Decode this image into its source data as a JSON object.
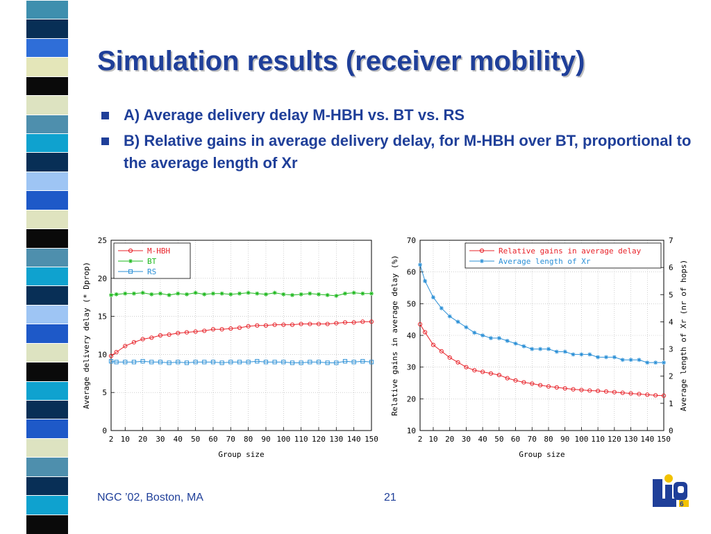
{
  "slide": {
    "title": "Simulation results (receiver mobility)",
    "bullets": [
      "A) Average delivery delay M-HBH vs. BT vs. RS",
      "B) Relative gains in average delivery delay, for M-HBH over BT, proportional to the average length of Xr"
    ],
    "footer_left": "NGC ’02, Boston, MA",
    "page_number": "21",
    "logo_icon": "lip6-logo-icon"
  },
  "colors": {
    "title": "#1f3f99",
    "red_series": "#e8232a",
    "green_series": "#1eb81e",
    "blue_series": "#2a8fd6"
  },
  "stripe_colors": [
    "#3e8fae",
    "#082f56",
    "#2f6ed8",
    "#e4e6b9",
    "#0a0a0a",
    "#dde3c1",
    "#4e8fad",
    "#0fa2cf",
    "#082f56",
    "#9ec5f4",
    "#1e59c8",
    "#dfe3bf",
    "#0a0a0a",
    "#4e8fad",
    "#0fa2cf",
    "#082f56",
    "#9ec5f4",
    "#1e59c8",
    "#dde3c1",
    "#0a0a0a",
    "#0fa2cf",
    "#082f56",
    "#1e59c8",
    "#dde3c1",
    "#4e8fad",
    "#082f56",
    "#0fa2cf",
    "#0a0a0a"
  ],
  "chart_data": [
    {
      "type": "line",
      "xlabel": "Group size",
      "ylabel": "Average delivery delay (* Dprop)",
      "xlim": [
        2,
        150
      ],
      "ylim": [
        0,
        25
      ],
      "x_ticks": [
        2,
        10,
        20,
        30,
        40,
        50,
        60,
        70,
        80,
        90,
        100,
        110,
        120,
        130,
        140,
        150
      ],
      "y_ticks": [
        0,
        5,
        10,
        15,
        20,
        25
      ],
      "grid": true,
      "legend_position": "top-left",
      "x": [
        2,
        5,
        10,
        15,
        20,
        25,
        30,
        35,
        40,
        45,
        50,
        55,
        60,
        65,
        70,
        75,
        80,
        85,
        90,
        95,
        100,
        105,
        110,
        115,
        120,
        125,
        130,
        135,
        140,
        145,
        150
      ],
      "series": [
        {
          "name": "M-HBH",
          "marker": "circle",
          "color": "#e8232a",
          "values": [
            9.8,
            10.3,
            11.1,
            11.6,
            12.0,
            12.2,
            12.5,
            12.6,
            12.8,
            12.9,
            13.0,
            13.1,
            13.3,
            13.3,
            13.4,
            13.5,
            13.7,
            13.8,
            13.8,
            13.9,
            13.9,
            13.9,
            14.0,
            14.0,
            14.0,
            14.0,
            14.1,
            14.2,
            14.2,
            14.3,
            14.3
          ]
        },
        {
          "name": "BT",
          "marker": "star",
          "color": "#1eb81e",
          "values": [
            17.8,
            17.9,
            18.0,
            18.0,
            18.1,
            17.9,
            18.0,
            17.8,
            18.0,
            17.9,
            18.1,
            17.9,
            18.0,
            18.0,
            17.9,
            18.0,
            18.1,
            18.0,
            17.9,
            18.1,
            17.9,
            17.8,
            17.9,
            18.0,
            17.9,
            17.8,
            17.7,
            18.0,
            18.1,
            18.0,
            18.0
          ]
        },
        {
          "name": "RS",
          "marker": "square",
          "color": "#2a8fd6",
          "values": [
            9.1,
            9.0,
            9.0,
            9.0,
            9.1,
            9.0,
            9.0,
            8.9,
            9.0,
            8.9,
            9.0,
            9.0,
            9.0,
            8.9,
            9.0,
            9.0,
            9.0,
            9.1,
            9.0,
            9.0,
            9.0,
            8.9,
            8.9,
            9.0,
            9.0,
            8.9,
            8.9,
            9.1,
            9.0,
            9.1,
            9.0
          ]
        }
      ]
    },
    {
      "type": "line",
      "xlabel": "Group size",
      "ylabel": "Relative gains in average delay (%)",
      "y2label": "Average length of Xr (nr of hops)",
      "xlim": [
        2,
        150
      ],
      "ylim": [
        10,
        70
      ],
      "y2lim": [
        0,
        7
      ],
      "x_ticks": [
        2,
        10,
        20,
        30,
        40,
        50,
        60,
        70,
        80,
        90,
        100,
        110,
        120,
        130,
        140,
        150
      ],
      "y_ticks": [
        10,
        20,
        30,
        40,
        50,
        60,
        70
      ],
      "y2_ticks": [
        0,
        1,
        2,
        3,
        4,
        5,
        6,
        7
      ],
      "grid": true,
      "legend_position": "top-right",
      "x": [
        2,
        5,
        10,
        15,
        20,
        25,
        30,
        35,
        40,
        45,
        50,
        55,
        60,
        65,
        70,
        75,
        80,
        85,
        90,
        95,
        100,
        105,
        110,
        115,
        120,
        125,
        130,
        135,
        140,
        145,
        150
      ],
      "series": [
        {
          "name": "Relative gains in average delay",
          "axis": "left",
          "marker": "circle",
          "color": "#e8232a",
          "values": [
            43.5,
            41.0,
            37.0,
            35.0,
            33.0,
            31.5,
            30.0,
            29.0,
            28.5,
            28.0,
            27.5,
            26.5,
            25.8,
            25.2,
            24.8,
            24.3,
            23.9,
            23.6,
            23.3,
            23.0,
            22.8,
            22.6,
            22.5,
            22.3,
            22.1,
            21.9,
            21.7,
            21.5,
            21.3,
            21.1,
            21.0
          ]
        },
        {
          "name": "Average length of Xr",
          "axis": "right",
          "marker": "star",
          "color": "#2a8fd6",
          "values": [
            6.1,
            5.5,
            4.9,
            4.5,
            4.2,
            4.0,
            3.8,
            3.6,
            3.5,
            3.4,
            3.4,
            3.3,
            3.2,
            3.1,
            3.0,
            3.0,
            3.0,
            2.9,
            2.9,
            2.8,
            2.8,
            2.8,
            2.7,
            2.7,
            2.7,
            2.6,
            2.6,
            2.6,
            2.5,
            2.5,
            2.5
          ]
        }
      ]
    }
  ]
}
